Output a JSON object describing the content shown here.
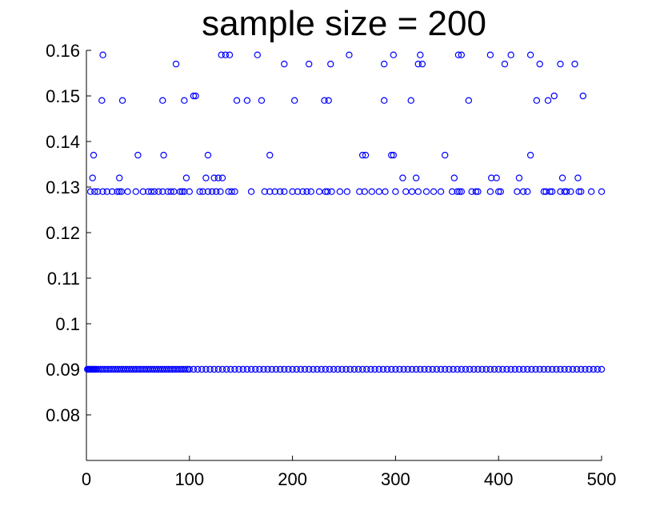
{
  "chart_data": {
    "type": "scatter",
    "title": "sample size = 200",
    "xlabel": "",
    "ylabel": "",
    "xlim": [
      0,
      500
    ],
    "ylim": [
      0.07,
      0.16
    ],
    "xticks": [
      0,
      100,
      200,
      300,
      400,
      500
    ],
    "xtick_labels": [
      "0",
      "100",
      "200",
      "300",
      "400",
      "500"
    ],
    "yticks": [
      0.08,
      0.09,
      0.1,
      0.11,
      0.12,
      0.13,
      0.14,
      0.15,
      0.16
    ],
    "ytick_labels": [
      "0.08",
      "0.09",
      "0.1",
      "0.11",
      "0.12",
      "0.13",
      "0.14",
      "0.15",
      "0.16"
    ],
    "grid": false,
    "marker": "open-circle",
    "colors": {
      "marker": "#0000ff"
    },
    "series": [
      {
        "x": [
          1,
          2,
          3,
          4,
          5,
          6,
          7,
          8,
          9,
          10,
          12,
          14,
          16,
          18,
          20,
          22,
          24,
          26,
          28,
          30,
          32,
          34,
          36,
          38,
          40,
          42,
          44,
          46,
          48,
          50,
          52,
          54,
          56,
          58,
          60,
          62,
          64,
          66,
          68,
          70,
          72,
          74,
          76,
          78,
          80,
          82,
          84,
          86,
          88,
          90,
          92,
          94,
          96,
          98,
          100,
          104,
          108,
          112,
          116,
          120,
          124,
          128,
          132,
          136,
          140,
          144,
          148,
          152,
          156,
          160,
          164,
          168,
          172,
          176,
          180,
          184,
          188,
          192,
          196,
          200,
          204,
          208,
          212,
          216,
          220,
          224,
          228,
          232,
          236,
          240,
          244,
          248,
          252,
          256,
          260,
          264,
          268,
          272,
          276,
          280,
          284,
          288,
          292,
          296,
          300,
          304,
          308,
          312,
          316,
          320,
          324,
          328,
          332,
          336,
          340,
          344,
          348,
          352,
          356,
          360,
          364,
          368,
          372,
          376,
          380,
          384,
          388,
          392,
          396,
          400,
          404,
          408,
          412,
          416,
          420,
          424,
          428,
          432,
          436,
          440,
          444,
          448,
          452,
          456,
          460,
          464,
          468,
          472,
          476,
          480,
          484,
          488,
          492,
          496,
          500
        ],
        "y": [
          0.09,
          0.09,
          0.09,
          0.09,
          0.09,
          0.09,
          0.09,
          0.09,
          0.09,
          0.09,
          0.09,
          0.09,
          0.09,
          0.09,
          0.09,
          0.09,
          0.09,
          0.09,
          0.09,
          0.09,
          0.09,
          0.09,
          0.09,
          0.09,
          0.09,
          0.09,
          0.09,
          0.09,
          0.09,
          0.09,
          0.09,
          0.09,
          0.09,
          0.09,
          0.09,
          0.09,
          0.09,
          0.09,
          0.09,
          0.09,
          0.09,
          0.09,
          0.09,
          0.09,
          0.09,
          0.09,
          0.09,
          0.09,
          0.09,
          0.09,
          0.09,
          0.09,
          0.09,
          0.09,
          0.09,
          0.09,
          0.09,
          0.09,
          0.09,
          0.09,
          0.09,
          0.09,
          0.09,
          0.09,
          0.09,
          0.09,
          0.09,
          0.09,
          0.09,
          0.09,
          0.09,
          0.09,
          0.09,
          0.09,
          0.09,
          0.09,
          0.09,
          0.09,
          0.09,
          0.09,
          0.09,
          0.09,
          0.09,
          0.09,
          0.09,
          0.09,
          0.09,
          0.09,
          0.09,
          0.09,
          0.09,
          0.09,
          0.09,
          0.09,
          0.09,
          0.09,
          0.09,
          0.09,
          0.09,
          0.09,
          0.09,
          0.09,
          0.09,
          0.09,
          0.09,
          0.09,
          0.09,
          0.09,
          0.09,
          0.09,
          0.09,
          0.09,
          0.09,
          0.09,
          0.09,
          0.09,
          0.09,
          0.09,
          0.09,
          0.09,
          0.09,
          0.09,
          0.09,
          0.09,
          0.09,
          0.09,
          0.09,
          0.09,
          0.09,
          0.09,
          0.09,
          0.09,
          0.09,
          0.09,
          0.09,
          0.09,
          0.09,
          0.09,
          0.09,
          0.09,
          0.09,
          0.09,
          0.09,
          0.09,
          0.09,
          0.09,
          0.09,
          0.09,
          0.09,
          0.09,
          0.09,
          0.09,
          0.09,
          0.09,
          0.09
        ]
      },
      {
        "x": [
          4,
          8,
          11,
          16,
          20,
          25,
          30,
          32,
          34,
          40,
          48,
          55,
          60,
          63,
          66,
          70,
          74,
          79,
          82,
          85,
          91,
          93,
          95,
          100,
          110,
          113,
          118,
          122,
          126,
          130,
          138,
          141,
          144,
          160,
          173,
          178,
          183,
          188,
          192,
          200,
          205,
          210,
          214,
          218,
          226,
          232,
          234,
          238,
          246,
          253,
          265,
          270,
          277,
          284,
          290,
          300,
          310,
          316,
          322,
          330,
          337,
          344,
          355,
          360,
          362,
          364,
          374,
          378,
          380,
          392,
          400,
          402,
          418,
          424,
          428,
          444,
          446,
          450,
          452,
          460,
          464,
          466,
          470,
          478,
          480,
          490,
          500
        ],
        "y": [
          0.129,
          0.129,
          0.129,
          0.129,
          0.129,
          0.129,
          0.129,
          0.129,
          0.129,
          0.129,
          0.129,
          0.129,
          0.129,
          0.129,
          0.129,
          0.129,
          0.129,
          0.129,
          0.129,
          0.129,
          0.129,
          0.129,
          0.129,
          0.129,
          0.129,
          0.129,
          0.129,
          0.129,
          0.129,
          0.129,
          0.129,
          0.129,
          0.129,
          0.129,
          0.129,
          0.129,
          0.129,
          0.129,
          0.129,
          0.129,
          0.129,
          0.129,
          0.129,
          0.129,
          0.129,
          0.129,
          0.129,
          0.129,
          0.129,
          0.129,
          0.129,
          0.129,
          0.129,
          0.129,
          0.129,
          0.129,
          0.129,
          0.129,
          0.129,
          0.129,
          0.129,
          0.129,
          0.129,
          0.129,
          0.129,
          0.129,
          0.129,
          0.129,
          0.129,
          0.129,
          0.129,
          0.129,
          0.129,
          0.129,
          0.129,
          0.129,
          0.129,
          0.129,
          0.129,
          0.129,
          0.129,
          0.129,
          0.129,
          0.129,
          0.129,
          0.129,
          0.129
        ]
      },
      {
        "x": [
          6,
          32,
          97,
          116,
          124,
          128,
          132,
          307,
          320,
          357,
          393,
          398,
          420,
          462,
          477
        ],
        "y": [
          0.132,
          0.132,
          0.132,
          0.132,
          0.132,
          0.132,
          0.132,
          0.132,
          0.132,
          0.132,
          0.132,
          0.132,
          0.132,
          0.132,
          0.132
        ]
      },
      {
        "x": [
          7,
          50,
          75,
          118,
          178,
          268,
          271,
          296,
          298,
          348,
          431
        ],
        "y": [
          0.137,
          0.137,
          0.137,
          0.137,
          0.137,
          0.137,
          0.137,
          0.137,
          0.137,
          0.137,
          0.137
        ]
      },
      {
        "x": [
          15,
          35,
          74,
          95,
          104,
          106,
          146,
          156,
          170,
          202,
          231,
          235,
          289,
          315,
          371,
          437,
          448,
          454,
          482
        ],
        "y": [
          0.149,
          0.149,
          0.149,
          0.149,
          0.15,
          0.15,
          0.149,
          0.149,
          0.149,
          0.149,
          0.149,
          0.149,
          0.149,
          0.149,
          0.149,
          0.149,
          0.149,
          0.15,
          0.15
        ]
      },
      {
        "x": [
          16,
          87,
          131,
          135,
          139,
          166,
          192,
          216,
          237,
          255,
          289,
          298,
          322,
          324,
          326,
          361,
          364,
          392,
          406,
          412,
          431,
          440,
          460,
          474
        ],
        "y": [
          0.159,
          0.157,
          0.159,
          0.159,
          0.159,
          0.159,
          0.157,
          0.157,
          0.157,
          0.159,
          0.157,
          0.159,
          0.157,
          0.159,
          0.157,
          0.159,
          0.159,
          0.159,
          0.157,
          0.159,
          0.159,
          0.157,
          0.157,
          0.157
        ]
      }
    ]
  }
}
